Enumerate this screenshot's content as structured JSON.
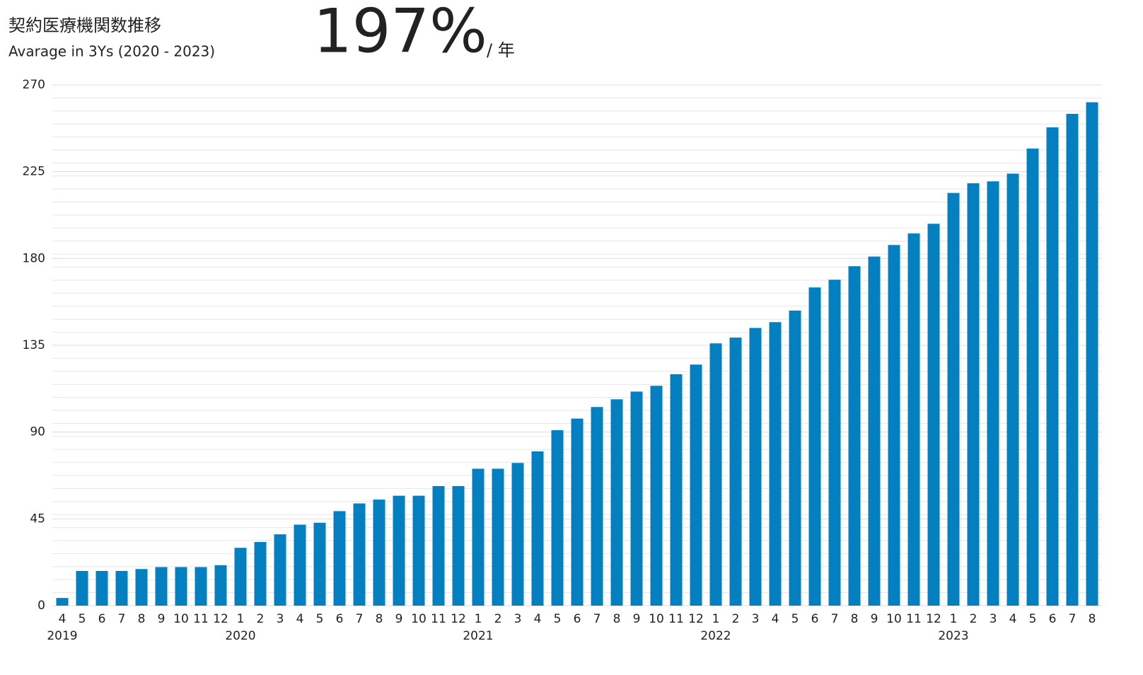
{
  "chart_data": {
    "type": "bar",
    "title": "契約医療機関数推移",
    "subtitle": "Avarage in 3Ys (2020 - 2023)",
    "headline": "197%",
    "headline_unit": "/ 年",
    "categories": [
      "4",
      "5",
      "6",
      "7",
      "8",
      "9",
      "10",
      "11",
      "12",
      "1",
      "2",
      "3",
      "4",
      "5",
      "6",
      "7",
      "8",
      "9",
      "10",
      "11",
      "12",
      "1",
      "2",
      "3",
      "4",
      "5",
      "6",
      "7",
      "8",
      "9",
      "10",
      "11",
      "12",
      "1",
      "2",
      "3",
      "4",
      "5",
      "6",
      "7",
      "8",
      "9",
      "10",
      "11",
      "12",
      "1",
      "2",
      "3",
      "4",
      "5",
      "6",
      "7",
      "8"
    ],
    "years": [
      "2019",
      null,
      null,
      null,
      null,
      null,
      null,
      null,
      null,
      "2020",
      null,
      null,
      null,
      null,
      null,
      null,
      null,
      null,
      null,
      null,
      null,
      "2021",
      null,
      null,
      null,
      null,
      null,
      null,
      null,
      null,
      null,
      null,
      null,
      "2022",
      null,
      null,
      null,
      null,
      null,
      null,
      null,
      null,
      null,
      null,
      null,
      "2023",
      null,
      null,
      null,
      null,
      null,
      null,
      null
    ],
    "values": [
      4,
      18,
      18,
      18,
      19,
      20,
      20,
      20,
      21,
      30,
      33,
      37,
      42,
      43,
      49,
      53,
      55,
      57,
      57,
      62,
      62,
      71,
      71,
      74,
      80,
      91,
      97,
      103,
      107,
      111,
      114,
      120,
      125,
      136,
      139,
      144,
      147,
      153,
      165,
      169,
      176,
      181,
      187,
      193,
      198,
      214,
      219,
      220,
      224,
      237,
      248,
      255,
      261
    ],
    "color": "#0480c1",
    "ylim": [
      0,
      270
    ],
    "yticks": [
      0,
      45,
      90,
      135,
      180,
      225,
      270
    ],
    "minor_ystep": 6.75,
    "grid": true
  }
}
